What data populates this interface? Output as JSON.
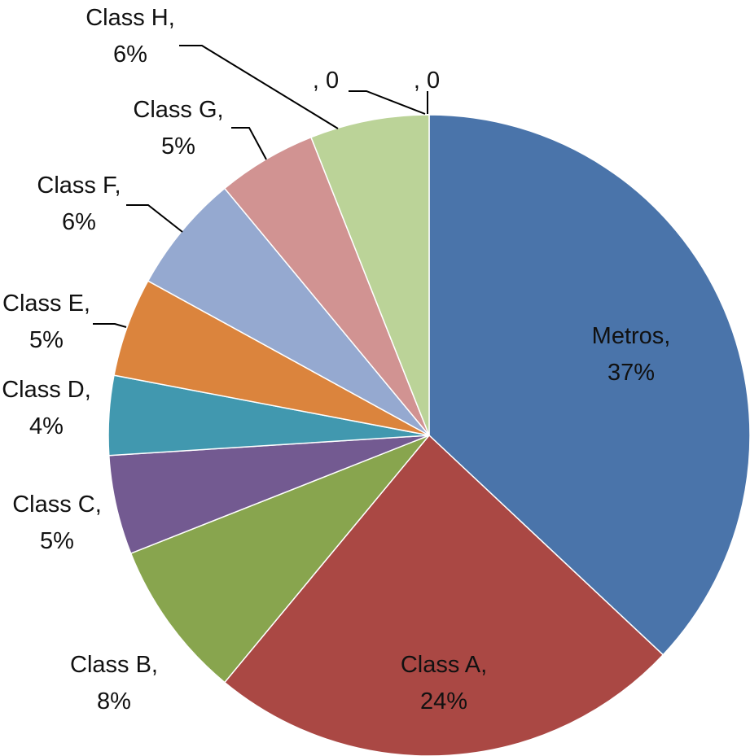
{
  "chart_data": {
    "type": "pie",
    "title": "",
    "start_angle_deg": 90,
    "direction": "clockwise",
    "slices": [
      {
        "name": "Metros",
        "value": 37,
        "label_name": "Metros,",
        "label_value": "37%",
        "color": "#4A74AA"
      },
      {
        "name": "Class A",
        "value": 24,
        "label_name": "Class A,",
        "label_value": "24%",
        "color": "#AA4844"
      },
      {
        "name": "Class B",
        "value": 8,
        "label_name": "Class B,",
        "label_value": "8%",
        "color": "#88A54E"
      },
      {
        "name": "Class C",
        "value": 5,
        "label_name": "Class C,",
        "label_value": "5%",
        "color": "#735A91"
      },
      {
        "name": "Class D",
        "value": 4,
        "label_name": "Class D,",
        "label_value": "4%",
        "color": "#4198AF"
      },
      {
        "name": "Class E",
        "value": 5,
        "label_name": "Class E,",
        "label_value": "5%",
        "color": "#DB843D"
      },
      {
        "name": "Class F",
        "value": 6,
        "label_name": "Class F,",
        "label_value": "6%",
        "color": "#95A9D0"
      },
      {
        "name": "Class G",
        "value": 5,
        "label_name": "Class G,",
        "label_value": "5%",
        "color": "#D19392"
      },
      {
        "name": "Class H",
        "value": 6,
        "label_name": "Class H,",
        "label_value": "6%",
        "color": "#BBD398"
      },
      {
        "name": "",
        "value": 0,
        "label_name": ", 0",
        "label_value": "",
        "color": "#4A74AA"
      },
      {
        "name": "",
        "value": 0,
        "label_name": ", 0",
        "label_value": "",
        "color": "#AA4844"
      }
    ]
  }
}
